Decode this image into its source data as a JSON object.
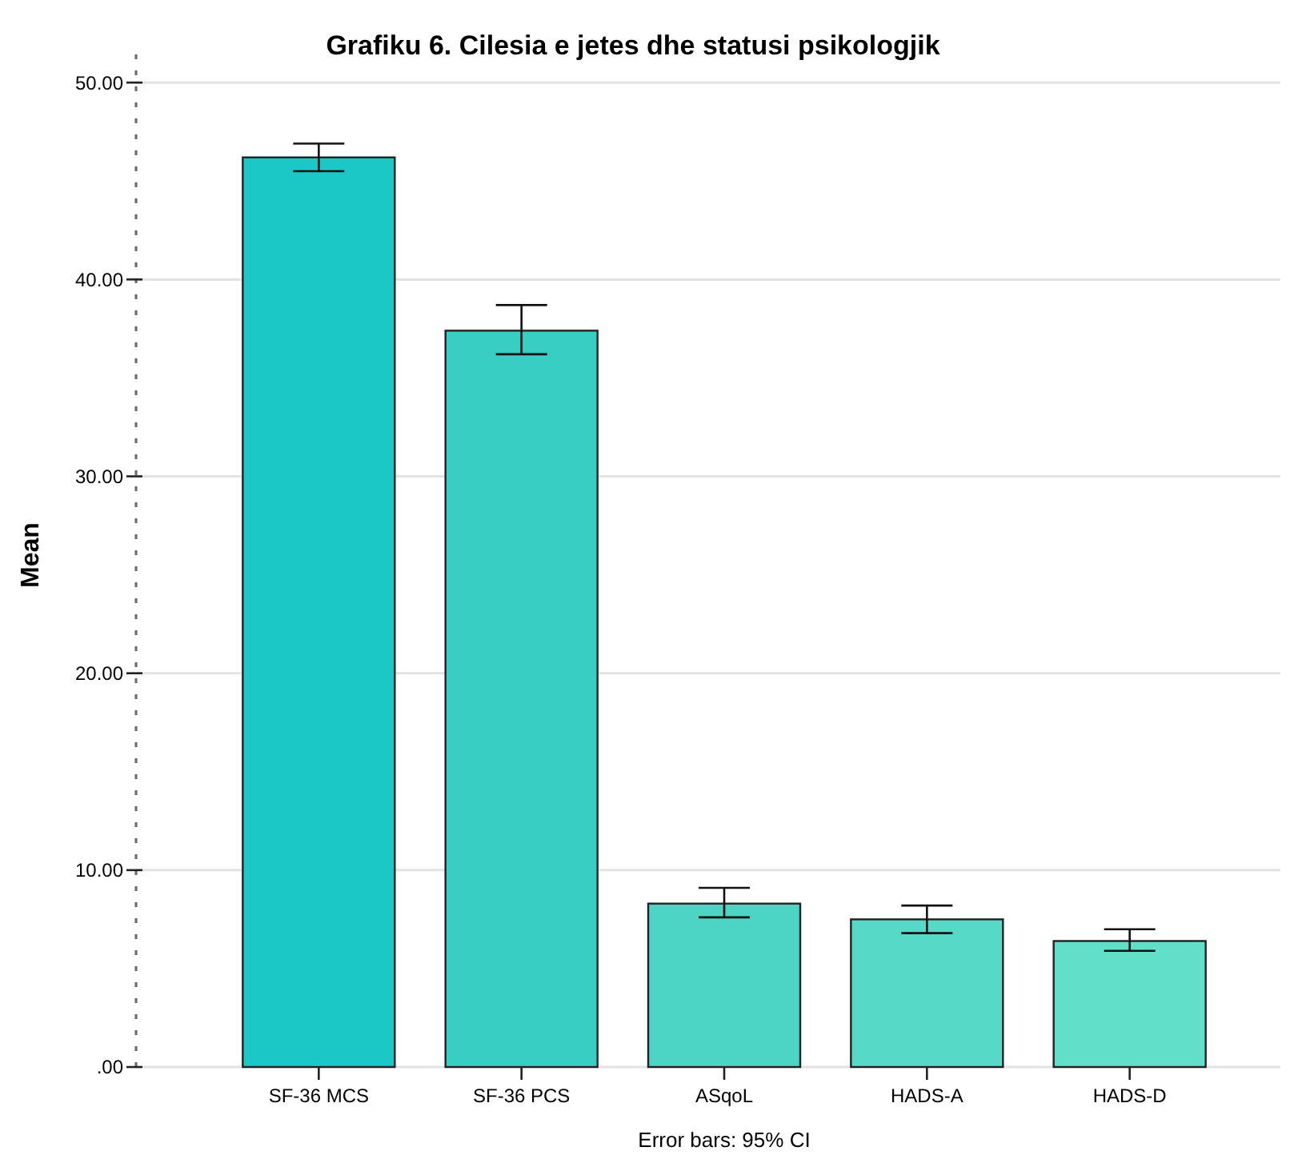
{
  "chart_data": {
    "type": "bar",
    "title": "Grafiku 6. Cilesia e jetes dhe statusi psikologjik",
    "ylabel": "Mean",
    "categories": [
      "SF-36 MCS",
      "SF-36 PCS",
      "ASqoL",
      "HADS-A",
      "HADS-D"
    ],
    "values": [
      46.2,
      37.4,
      8.3,
      7.5,
      6.4
    ],
    "errors": [
      [
        45.5,
        46.9
      ],
      [
        36.2,
        38.7
      ],
      [
        7.6,
        9.1
      ],
      [
        6.8,
        8.2
      ],
      [
        5.9,
        7.0
      ]
    ],
    "colors": [
      "#1cc8c6",
      "#39cec4",
      "#4cd5c5",
      "#56d9c7",
      "#62dfc8"
    ],
    "ylim": [
      0,
      52
    ],
    "yticks": [
      {
        "value": 0,
        "label": ".00"
      },
      {
        "value": 10,
        "label": "10.00"
      },
      {
        "value": 20,
        "label": "20.00"
      },
      {
        "value": 30,
        "label": "30.00"
      },
      {
        "value": 40,
        "label": "40.00"
      },
      {
        "value": 50,
        "label": "50.00"
      }
    ],
    "grid": "y",
    "annotations": [
      "Error bars: 95% CI"
    ]
  }
}
